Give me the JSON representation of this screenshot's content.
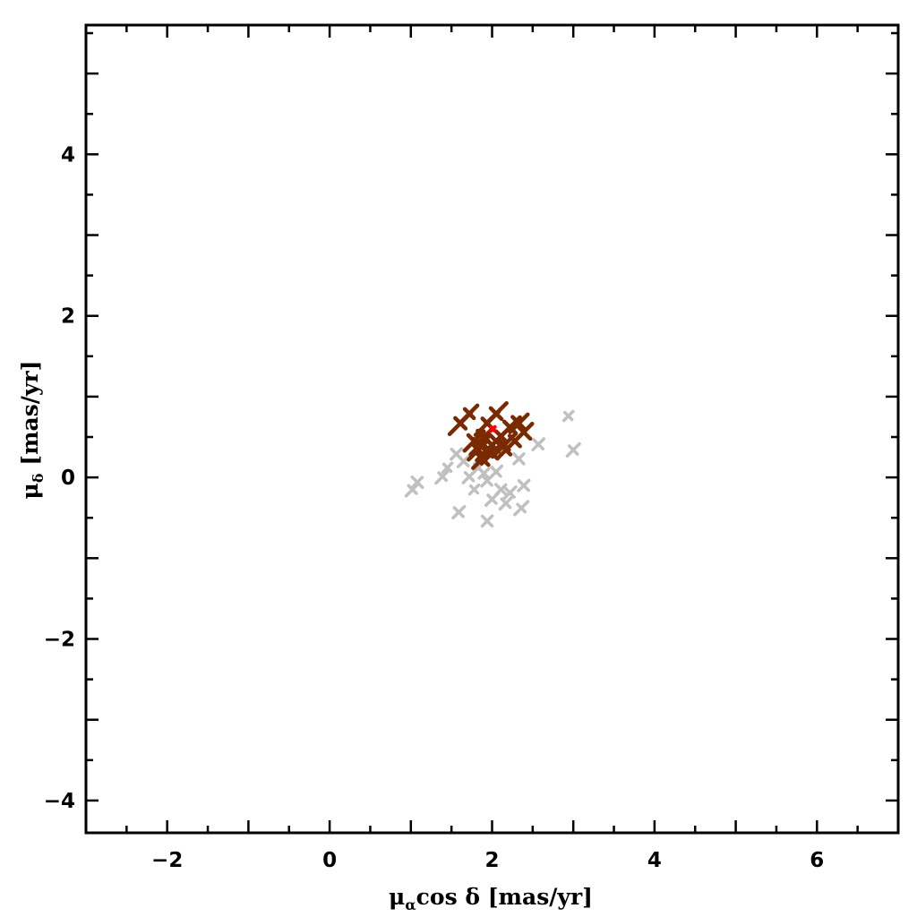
{
  "chart_data": {
    "type": "scatter",
    "title": "",
    "xlabel": "μαcos δ [mas/yr]",
    "ylabel": "μδ [mas/yr]",
    "xlabel_parts": {
      "mu": "μ",
      "sub": "α",
      "rest": "cos δ  [mas/yr]"
    },
    "ylabel_parts": {
      "mu": "μ",
      "sub": "δ",
      "rest": " [mas/yr]"
    },
    "xlim": [
      -3,
      7
    ],
    "ylim": [
      -4.4,
      5.6
    ],
    "xticks": [
      -2,
      0,
      2,
      4,
      6
    ],
    "yticks": [
      -4,
      -2,
      0,
      2,
      4
    ],
    "xtick_labels": [
      "−2",
      "0",
      "2",
      "4",
      "6"
    ],
    "ytick_labels": [
      "−4",
      "−2",
      "0",
      "2",
      "4"
    ],
    "grid": false,
    "series": [
      {
        "marker": "cross",
        "color": "#c0c0c0",
        "points": [
          [
            2.94,
            0.76
          ],
          [
            3.0,
            0.34
          ],
          [
            2.57,
            0.41
          ],
          [
            1.08,
            -0.06
          ],
          [
            1.02,
            -0.15
          ],
          [
            1.59,
            -0.43
          ],
          [
            1.94,
            -0.54
          ],
          [
            2.36,
            -0.38
          ],
          [
            2.22,
            -0.19
          ],
          [
            1.56,
            0.29
          ],
          [
            1.45,
            0.12
          ],
          [
            1.72,
            0.01
          ],
          [
            1.94,
            -0.04
          ],
          [
            2.11,
            -0.15
          ],
          [
            1.83,
            0.12
          ],
          [
            2.05,
            0.07
          ],
          [
            2.33,
            0.23
          ],
          [
            1.39,
            0.01
          ],
          [
            2.17,
            -0.32
          ],
          [
            2.39,
            -0.1
          ],
          [
            1.78,
            -0.15
          ],
          [
            2.0,
            -0.27
          ],
          [
            1.65,
            0.2
          ],
          [
            1.9,
            0.05
          ]
        ]
      },
      {
        "marker": "cross",
        "color": "#7a2a00",
        "points": [
          [
            1.72,
            0.79
          ],
          [
            1.61,
            0.67
          ],
          [
            1.83,
            0.34
          ],
          [
            2.0,
            0.4
          ],
          [
            2.11,
            0.51
          ],
          [
            2.22,
            0.62
          ],
          [
            2.33,
            0.67
          ],
          [
            1.94,
            0.67
          ],
          [
            2.05,
            0.79
          ],
          [
            1.88,
            0.23
          ],
          [
            2.17,
            0.34
          ],
          [
            2.28,
            0.45
          ],
          [
            1.78,
            0.45
          ],
          [
            2.39,
            0.56
          ],
          [
            1.95,
            0.35
          ],
          [
            2.05,
            0.45
          ],
          [
            1.9,
            0.5
          ],
          [
            2.15,
            0.4
          ],
          [
            2.0,
            0.3
          ],
          [
            1.85,
            0.4
          ]
        ]
      },
      {
        "marker": "cross",
        "color": "#ff0000",
        "points": [
          [
            2.01,
            0.6
          ]
        ]
      }
    ]
  }
}
